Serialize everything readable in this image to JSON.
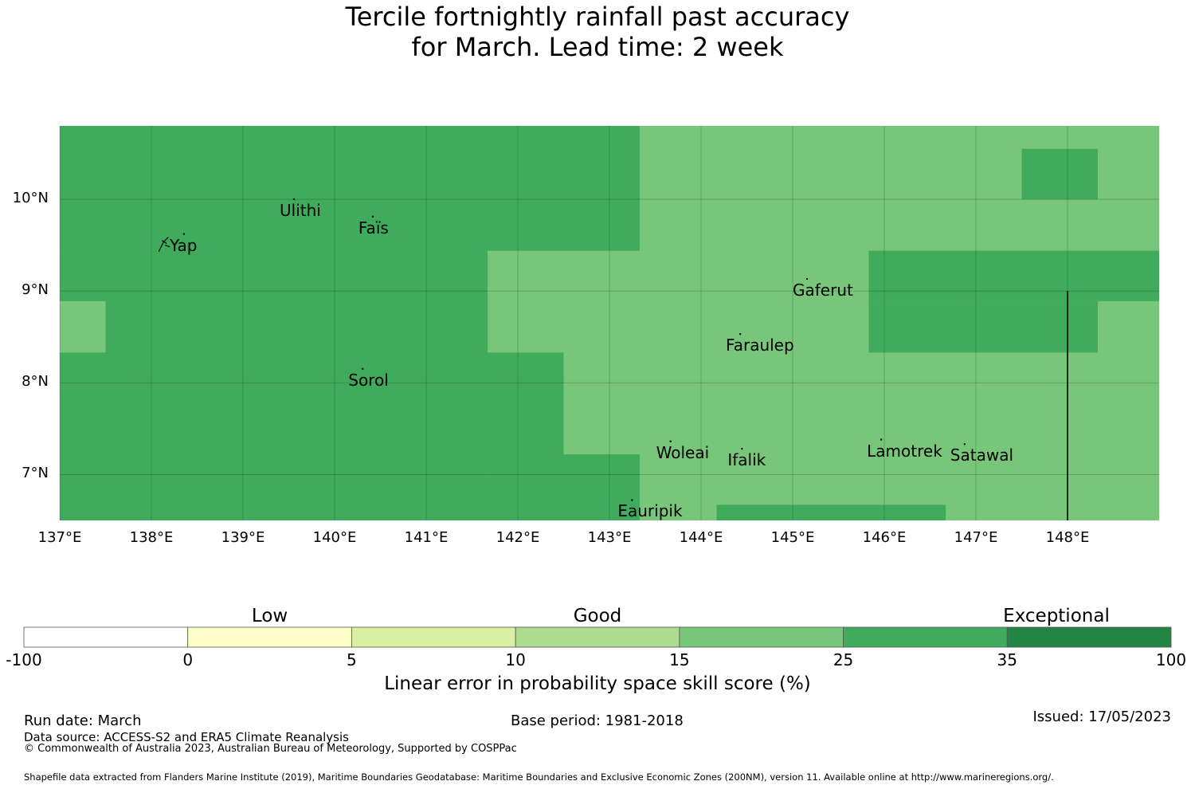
{
  "title": {
    "line1": "Tercile fortnightly rainfall past accuracy",
    "line2": "for March. Lead time: 2 week"
  },
  "map": {
    "lon_range": [
      137.0,
      149.0
    ],
    "lat_range": [
      6.5,
      10.8
    ],
    "lat_labels": [
      "10°N",
      "9°N",
      "8°N",
      "7°N"
    ],
    "lat_values": [
      10,
      9,
      8,
      7
    ],
    "lon_labels": [
      "137°E",
      "138°E",
      "139°E",
      "140°E",
      "141°E",
      "142°E",
      "143°E",
      "144°E",
      "145°E",
      "146°E",
      "147°E",
      "148°E"
    ],
    "lon_values": [
      137,
      138,
      139,
      140,
      141,
      142,
      143,
      144,
      145,
      146,
      147,
      148
    ],
    "colors": {
      "band_15_25": "#78c679",
      "band_25_35": "#41ab5d"
    },
    "skill_regions": [
      {
        "band": "25-35",
        "lon": [
          137.0,
          143.33
        ],
        "lat": [
          9.44,
          10.8
        ]
      },
      {
        "band": "25-35",
        "lon": [
          137.0,
          141.67
        ],
        "lat": [
          6.5,
          9.44
        ]
      },
      {
        "band": "25-35",
        "lon": [
          141.67,
          142.5
        ],
        "lat": [
          6.5,
          8.33
        ]
      },
      {
        "band": "25-35",
        "lon": [
          142.5,
          143.33
        ],
        "lat": [
          6.5,
          7.22
        ]
      },
      {
        "band": "15-25",
        "lon": [
          137.0,
          137.5
        ],
        "lat": [
          8.33,
          8.89
        ]
      },
      {
        "band": "25-35",
        "lon": [
          147.5,
          148.33
        ],
        "lat": [
          10.0,
          10.55
        ]
      },
      {
        "band": "25-35",
        "lon": [
          145.83,
          149.0
        ],
        "lat": [
          8.89,
          9.44
        ]
      },
      {
        "band": "25-35",
        "lon": [
          145.83,
          148.33
        ],
        "lat": [
          8.33,
          8.89
        ]
      },
      {
        "band": "25-35",
        "lon": [
          144.17,
          146.67
        ],
        "lat": [
          6.5,
          6.67
        ]
      }
    ],
    "boundary_line": {
      "lon": 148.0,
      "lat": [
        6.5,
        9.0
      ]
    },
    "places": [
      {
        "name": "Ulithi",
        "lon": 139.4,
        "lat": 9.88
      },
      {
        "name": "Faïs",
        "lon": 140.26,
        "lat": 9.69
      },
      {
        "name": "Yap",
        "lon": 138.2,
        "lat": 9.5
      },
      {
        "name": "Gaferut",
        "lon": 145.0,
        "lat": 9.01
      },
      {
        "name": "Faraulep",
        "lon": 144.27,
        "lat": 8.41
      },
      {
        "name": "Sorol",
        "lon": 140.15,
        "lat": 8.03
      },
      {
        "name": "Woleai",
        "lon": 143.51,
        "lat": 7.24
      },
      {
        "name": "Ifalik",
        "lon": 144.29,
        "lat": 7.16
      },
      {
        "name": "Lamotrek",
        "lon": 145.81,
        "lat": 7.26
      },
      {
        "name": "Satawal",
        "lon": 146.72,
        "lat": 7.21
      },
      {
        "name": "Eauripik",
        "lon": 143.09,
        "lat": 6.6
      }
    ]
  },
  "legend": {
    "categories": [
      {
        "label": "Low",
        "at_bin": 1.5
      },
      {
        "label": "Good",
        "at_bin": 3.5
      },
      {
        "label": "Exceptional",
        "at_bin": 6.3
      }
    ],
    "colors": [
      "#ffffff",
      "#ffffcc",
      "#d9f0a3",
      "#addd8e",
      "#78c679",
      "#41ab5d",
      "#238443"
    ],
    "ticks": [
      "-100",
      "0",
      "5",
      "10",
      "15",
      "25",
      "35",
      "100"
    ],
    "caption": "Linear error in probability space skill score (%)"
  },
  "footer": {
    "run_date": "Run date: March",
    "base_period": "Base period: 1981-2018",
    "issued": "Issued: 17/05/2023",
    "data_source": "Data source: ACCESS-S2 and ERA5 Climate Reanalysis",
    "copyright": "© Commonwealth of Australia 2023, Australian Bureau of Meteorology, Supported by COSPPac",
    "shapefile": "Shapefile data extracted from Flanders Marine Institute (2019), Maritime Boundaries Geodatabase: Maritime Boundaries and Exclusive Economic Zones (200NM), version 11. Available online at http://www.marineregions.org/."
  }
}
